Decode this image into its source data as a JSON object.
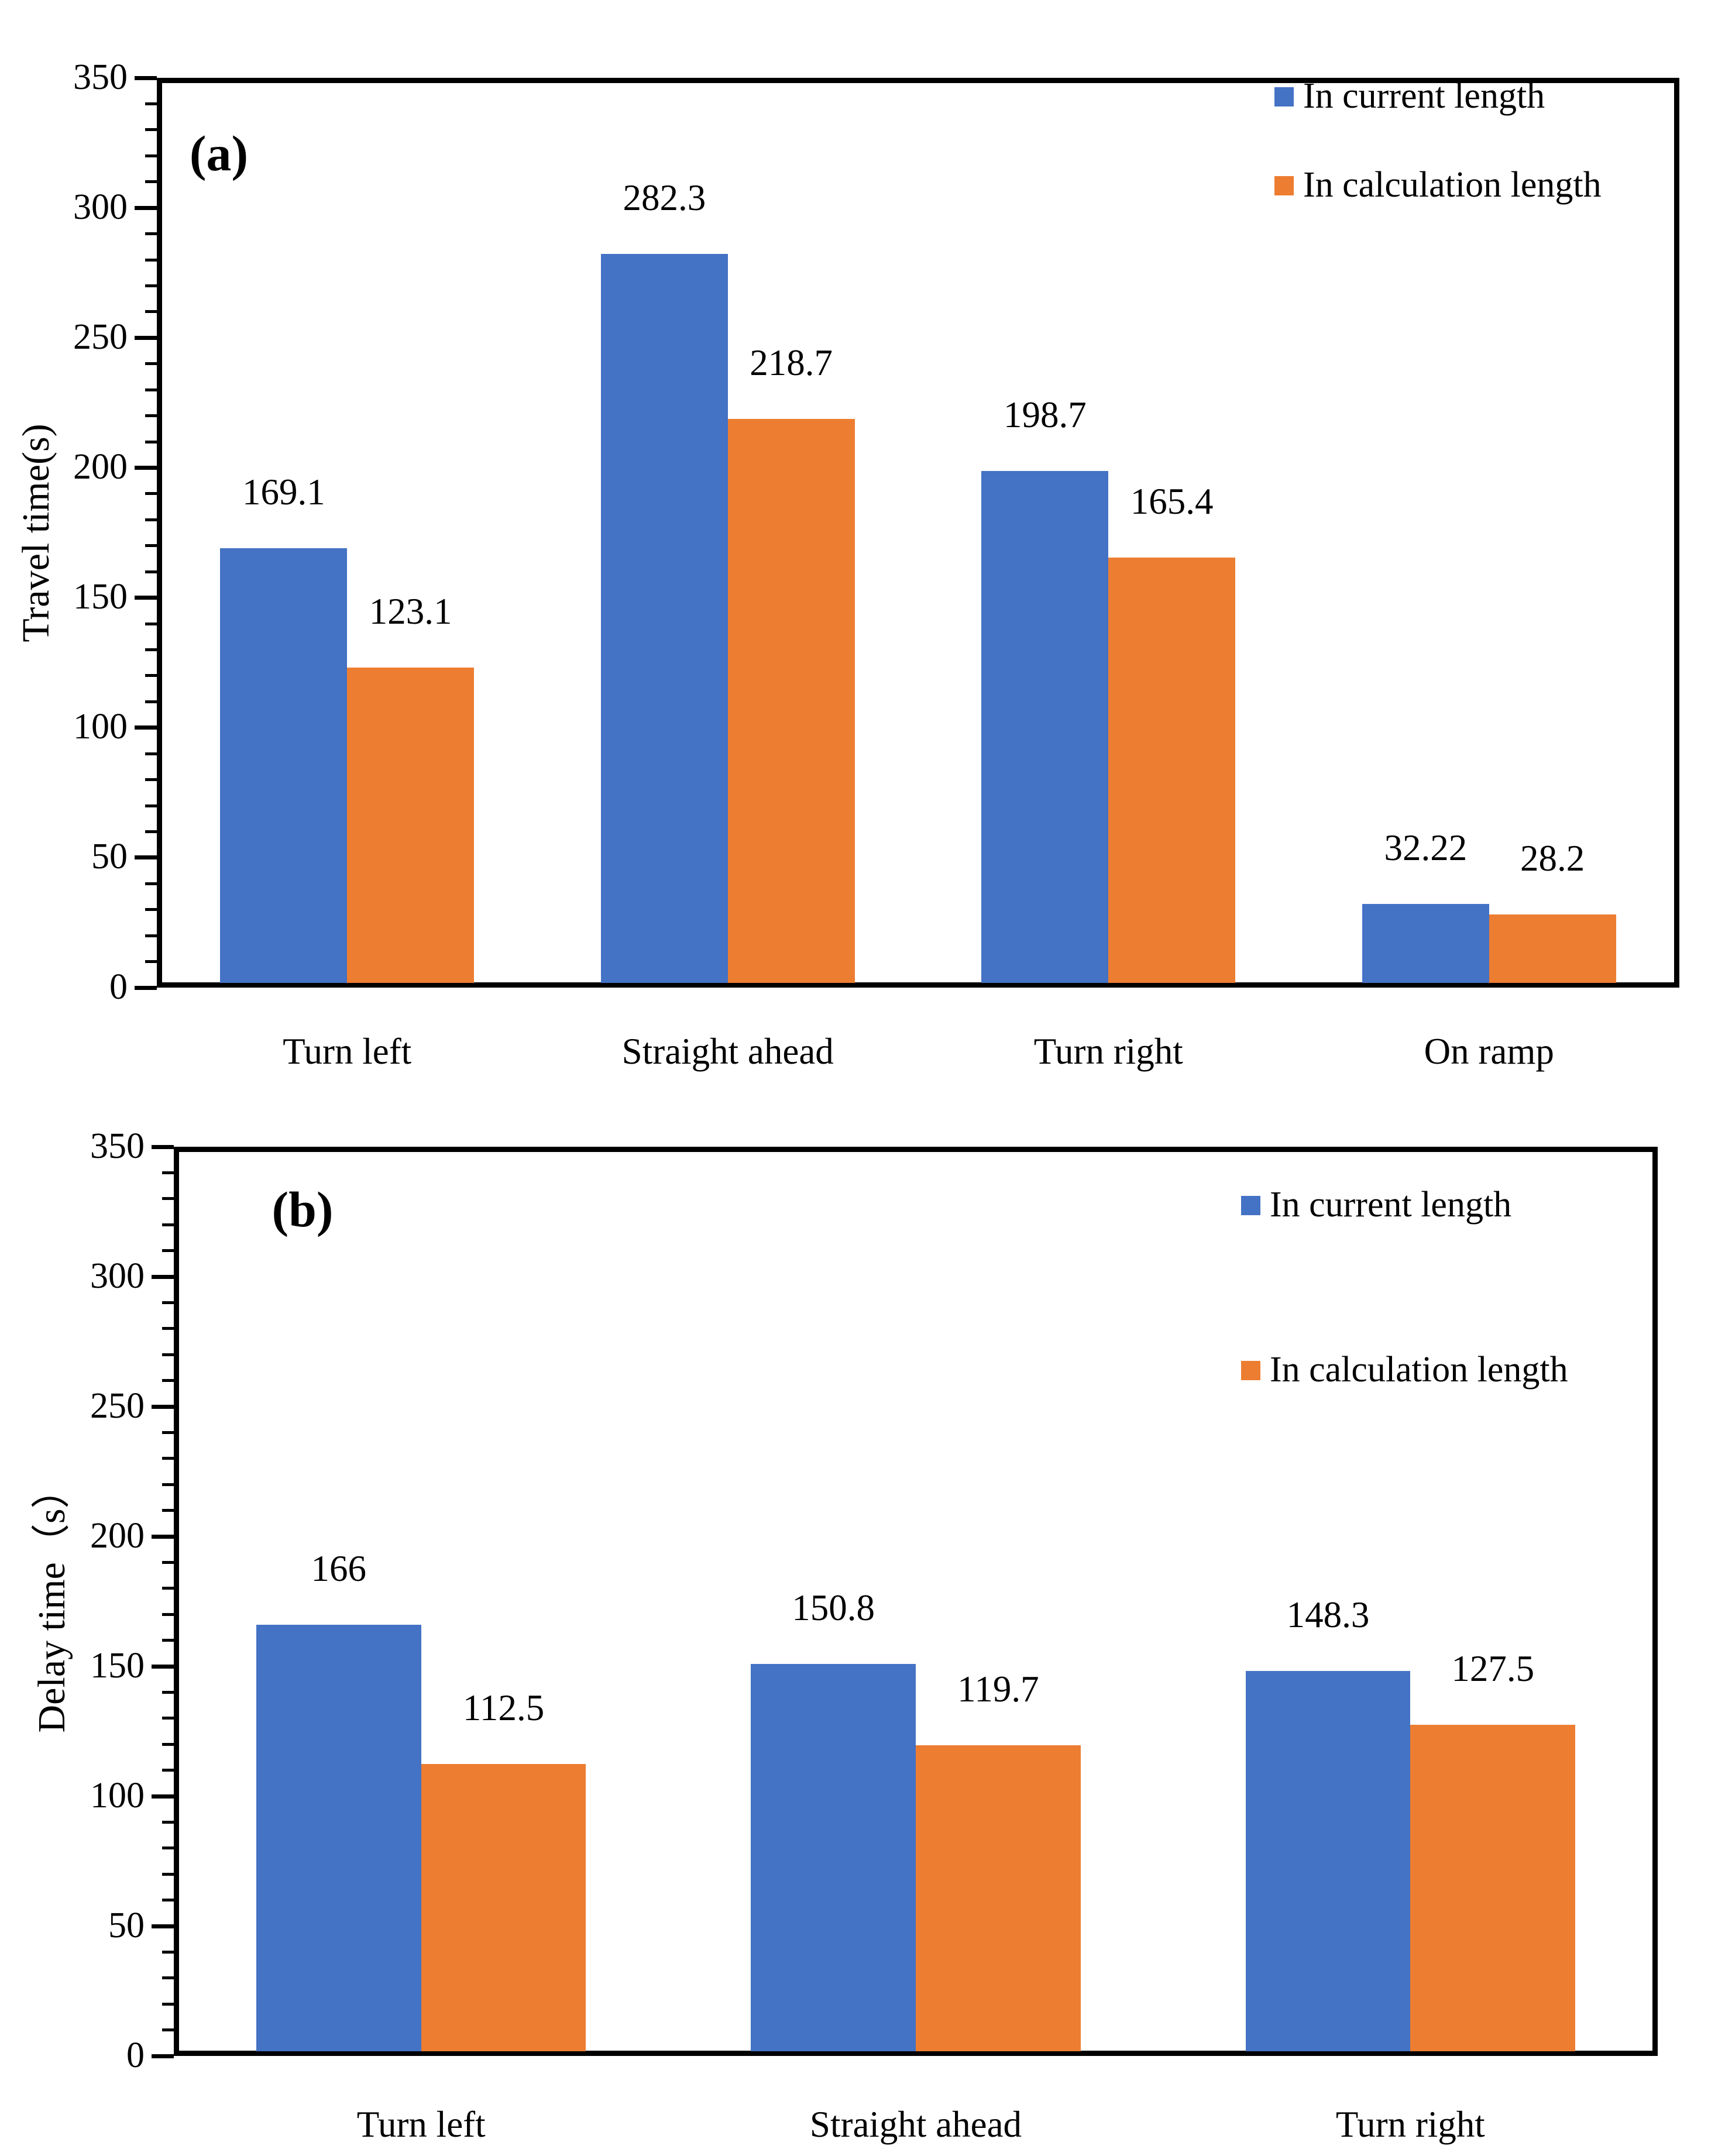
{
  "figure": {
    "background": "#ffffff",
    "text_color": "#000000",
    "axis_color": "#000000"
  },
  "chart_data": [
    {
      "type": "bar",
      "panel_label": "(a)",
      "title": "",
      "xlabel": "",
      "ylabel": "Travel time(s)",
      "ylim": [
        0,
        350
      ],
      "ytick_step": 50,
      "minor_tick_step": 10,
      "yticks": [
        "0",
        "50",
        "100",
        "150",
        "200",
        "250",
        "300",
        "350"
      ],
      "grid": false,
      "legend_position": "top-right",
      "categories": [
        "Turn left",
        "Straight ahead",
        "Turn right",
        "On ramp"
      ],
      "series": [
        {
          "name": "In current length",
          "color": "#4472C4",
          "values": [
            169.1,
            282.3,
            198.7,
            32.22
          ],
          "labels": [
            "169.1",
            "282.3",
            "198.7",
            "32.22"
          ]
        },
        {
          "name": "In calculation length",
          "color": "#ED7D31",
          "values": [
            123.1,
            218.7,
            165.4,
            28.2
          ],
          "labels": [
            "123.1",
            "218.7",
            "165.4",
            "28.2"
          ]
        }
      ]
    },
    {
      "type": "bar",
      "panel_label": "(b)",
      "title": "",
      "xlabel": "",
      "ylabel": "Delay time（s）",
      "ylim": [
        0,
        350
      ],
      "ytick_step": 50,
      "minor_tick_step": 10,
      "yticks": [
        "0",
        "50",
        "100",
        "150",
        "200",
        "250",
        "300",
        "350"
      ],
      "grid": false,
      "legend_position": "top-right",
      "categories": [
        "Turn left",
        "Straight ahead",
        "Turn right"
      ],
      "series": [
        {
          "name": "In current length",
          "color": "#4472C4",
          "values": [
            166,
            150.8,
            148.3
          ],
          "labels": [
            "166",
            "150.8",
            "148.3"
          ]
        },
        {
          "name": "In calculation length",
          "color": "#ED7D31",
          "values": [
            112.5,
            119.7,
            127.5
          ],
          "labels": [
            "112.5",
            "119.7",
            "127.5"
          ]
        }
      ]
    }
  ]
}
